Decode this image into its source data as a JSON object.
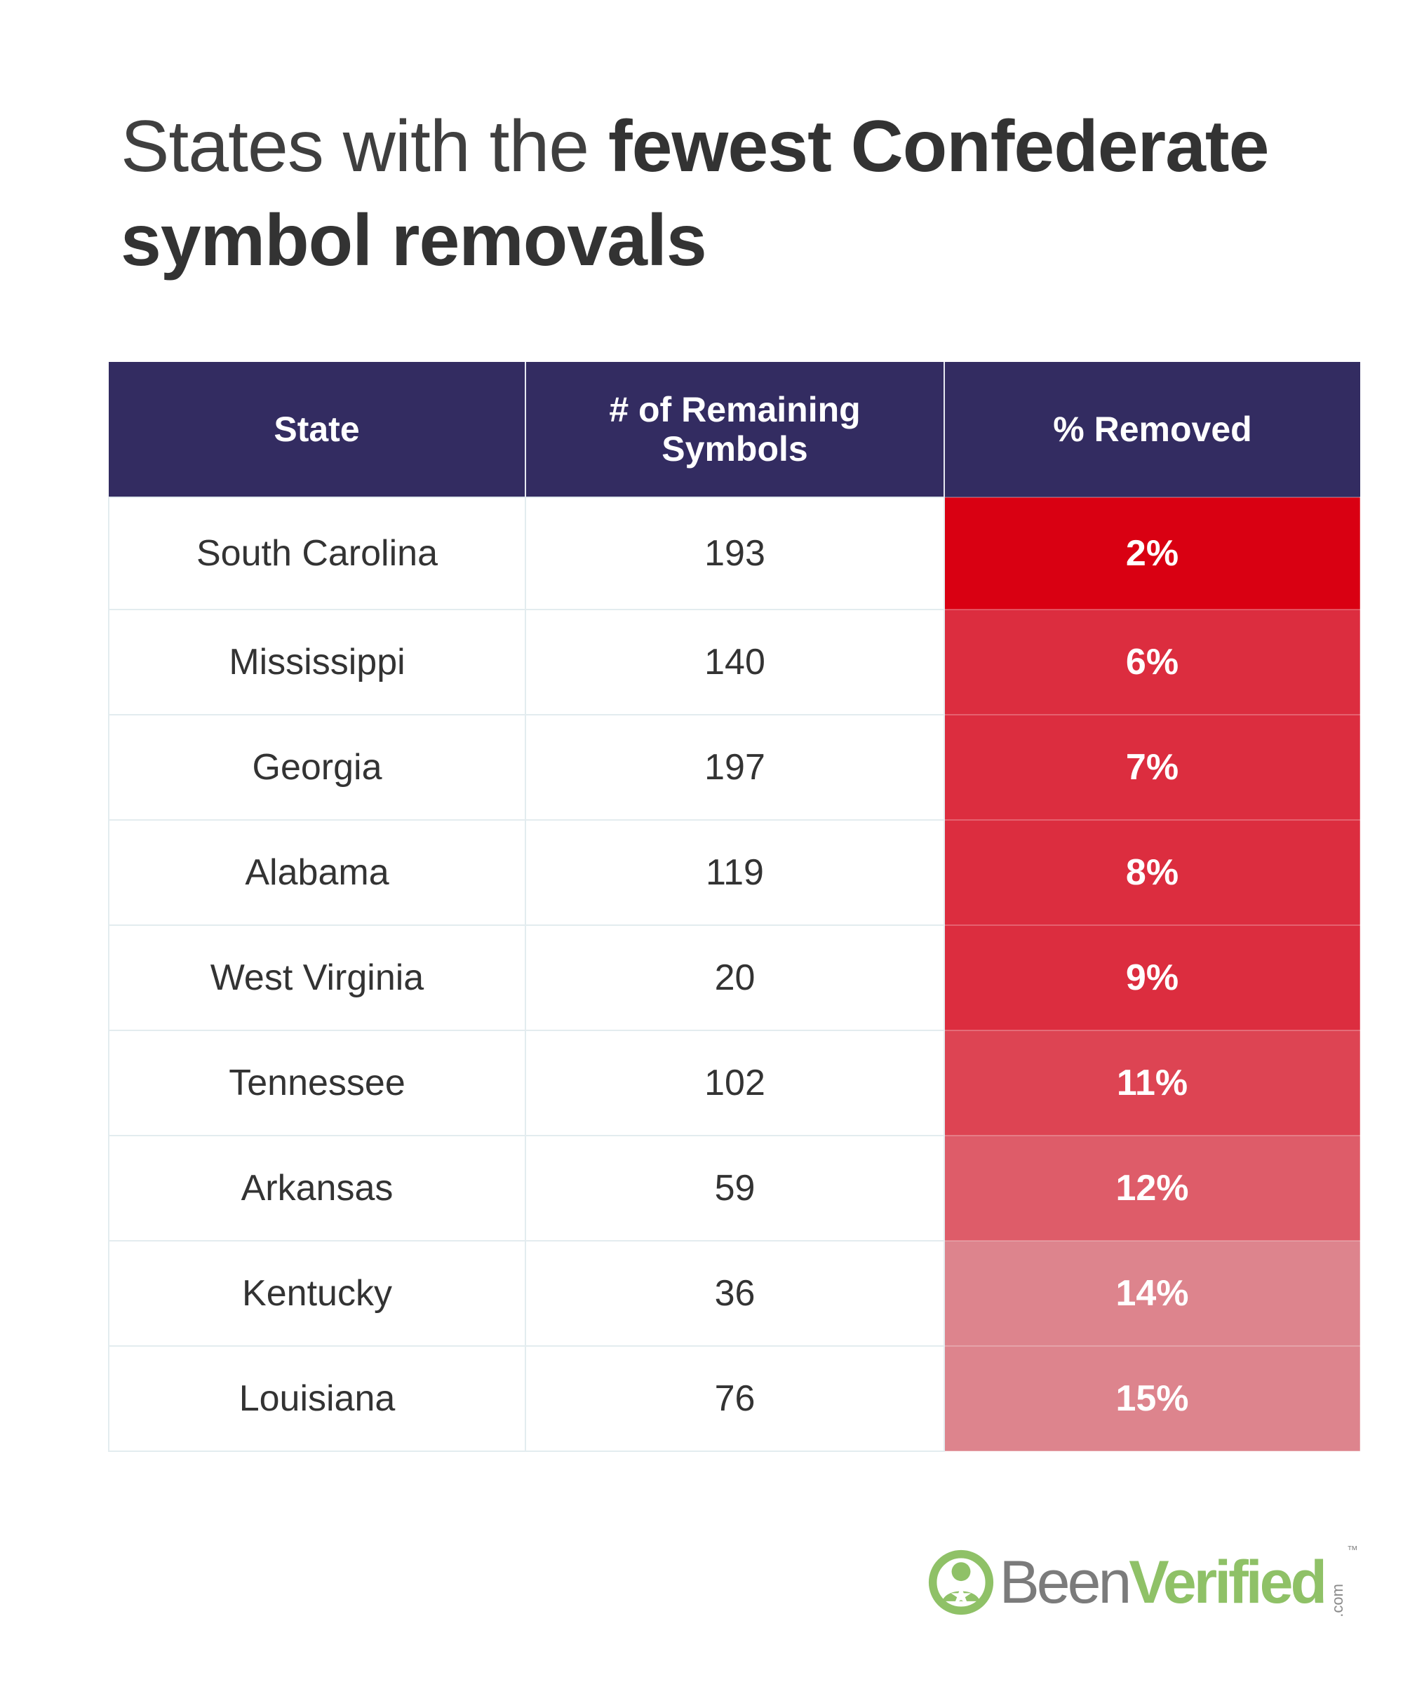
{
  "title": {
    "light": "States with the ",
    "bold": "fewest Confederate symbol removals"
  },
  "table": {
    "headers": {
      "state": "State",
      "remaining_line1": "# of Remaining",
      "remaining_line2": "Symbols",
      "removed": "% Removed"
    },
    "rows": [
      {
        "state": "South Carolina",
        "remaining": "193",
        "removed": "2%",
        "color": "#d90012"
      },
      {
        "state": "Mississippi",
        "remaining": "140",
        "removed": "6%",
        "color": "#dc2d3f"
      },
      {
        "state": "Georgia",
        "remaining": "197",
        "removed": "7%",
        "color": "#dc2d3f"
      },
      {
        "state": "Alabama",
        "remaining": "119",
        "removed": "8%",
        "color": "#dc2d3f"
      },
      {
        "state": "West Virginia",
        "remaining": "20",
        "removed": "9%",
        "color": "#dc2d3f"
      },
      {
        "state": "Tennessee",
        "remaining": "102",
        "removed": "11%",
        "color": "#dd4453"
      },
      {
        "state": "Arkansas",
        "remaining": "59",
        "removed": "12%",
        "color": "#de5c69"
      },
      {
        "state": "Kentucky",
        "remaining": "36",
        "removed": "14%",
        "color": "#dd848d"
      },
      {
        "state": "Louisiana",
        "remaining": "76",
        "removed": "15%",
        "color": "#dd848d"
      }
    ]
  },
  "chart_data": {
    "type": "table",
    "title": "States with the fewest Confederate symbol removals",
    "columns": [
      "State",
      "# of Remaining Symbols",
      "% Removed"
    ],
    "categories": [
      "South Carolina",
      "Mississippi",
      "Georgia",
      "Alabama",
      "West Virginia",
      "Tennessee",
      "Arkansas",
      "Kentucky",
      "Louisiana"
    ],
    "series": [
      {
        "name": "# of Remaining Symbols",
        "values": [
          193,
          140,
          197,
          119,
          20,
          102,
          59,
          36,
          76
        ]
      },
      {
        "name": "% Removed",
        "values": [
          2,
          6,
          7,
          8,
          9,
          11,
          12,
          14,
          15
        ]
      }
    ]
  },
  "logo": {
    "been": "Been",
    "verified": "Verified",
    "dotcom": ".com",
    "tm": "™",
    "color_green": "#8fc167",
    "color_gray": "#7b7b7b"
  },
  "colors": {
    "header_bg": "#332c61",
    "header_text": "#ffffff"
  }
}
